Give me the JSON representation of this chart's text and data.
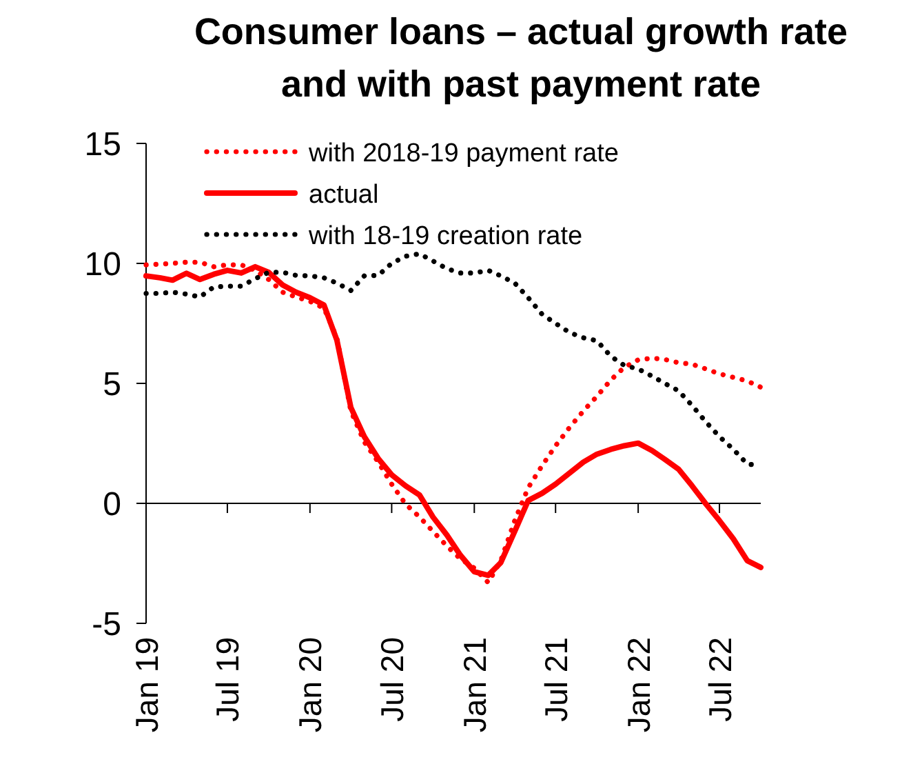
{
  "chart_data": {
    "type": "line",
    "title": "Consumer loans – actual growth rate\nand with past payment rate",
    "x": [
      "2019-01",
      "2019-02",
      "2019-03",
      "2019-04",
      "2019-05",
      "2019-06",
      "2019-07",
      "2019-08",
      "2019-09",
      "2019-10",
      "2019-11",
      "2019-12",
      "2020-01",
      "2020-02",
      "2020-03",
      "2020-04",
      "2020-05",
      "2020-06",
      "2020-07",
      "2020-08",
      "2020-09",
      "2020-10",
      "2020-11",
      "2020-12",
      "2021-01",
      "2021-02",
      "2021-03",
      "2021-04",
      "2021-05",
      "2021-06",
      "2021-07",
      "2021-08",
      "2021-09",
      "2021-10",
      "2021-11",
      "2021-12",
      "2022-01",
      "2022-02",
      "2022-03",
      "2022-04",
      "2022-05",
      "2022-06",
      "2022-07",
      "2022-08",
      "2022-09",
      "2022-10"
    ],
    "series": [
      {
        "name": "with 2018-19 payment rate",
        "color": "#ff0000",
        "line_style": "dotted",
        "values": [
          9.94,
          9.97,
          10.0,
          10.05,
          10.05,
          9.86,
          9.94,
          9.94,
          9.71,
          9.33,
          8.8,
          8.6,
          8.42,
          8.14,
          6.9,
          3.85,
          2.56,
          1.72,
          0.8,
          -0.03,
          -0.57,
          -1.17,
          -1.78,
          -2.31,
          -2.7,
          -3.3,
          -2.39,
          -0.72,
          0.65,
          1.57,
          2.4,
          3.16,
          3.85,
          4.46,
          5.14,
          5.67,
          5.98,
          6.05,
          6.0,
          5.86,
          5.8,
          5.6,
          5.4,
          5.25,
          5.1,
          4.84
        ]
      },
      {
        "name": "actual",
        "color": "#ff0000",
        "line_style": "solid",
        "values": [
          9.48,
          9.4,
          9.3,
          9.59,
          9.33,
          9.55,
          9.71,
          9.6,
          9.86,
          9.63,
          9.1,
          8.8,
          8.57,
          8.27,
          6.8,
          4.0,
          2.78,
          1.87,
          1.19,
          0.73,
          0.35,
          -0.57,
          -1.32,
          -2.16,
          -2.85,
          -3.0,
          -2.47,
          -1.17,
          0.12,
          0.42,
          0.8,
          1.26,
          1.72,
          2.05,
          2.25,
          2.4,
          2.51,
          2.2,
          1.84,
          1.42,
          0.73,
          -0.03,
          -0.72,
          -1.48,
          -2.39,
          -2.67
        ]
      },
      {
        "name": "with 18-19 creation rate",
        "color": "#000000",
        "line_style": "dotted",
        "values": [
          8.75,
          8.75,
          8.8,
          8.72,
          8.6,
          9.02,
          9.05,
          9.05,
          9.36,
          9.63,
          9.63,
          9.5,
          9.48,
          9.4,
          9.18,
          8.87,
          9.48,
          9.5,
          10.0,
          10.3,
          10.4,
          10.1,
          9.78,
          9.6,
          9.6,
          9.71,
          9.48,
          9.18,
          8.57,
          7.88,
          7.5,
          7.12,
          6.9,
          6.78,
          6.13,
          5.75,
          5.6,
          5.3,
          5.0,
          4.69,
          4.08,
          3.39,
          2.78,
          2.25,
          1.64,
          1.57
        ]
      }
    ],
    "xlim": [
      "2019-01",
      "2022-10"
    ],
    "xticks": [
      {
        "value": "2019-01",
        "label": "Jan 19"
      },
      {
        "value": "2019-07",
        "label": "Jul 19"
      },
      {
        "value": "2020-01",
        "label": "Jan 20"
      },
      {
        "value": "2020-07",
        "label": "Jul 20"
      },
      {
        "value": "2021-01",
        "label": "Jan 21"
      },
      {
        "value": "2021-07",
        "label": "Jul 21"
      },
      {
        "value": "2022-01",
        "label": "Jan 22"
      },
      {
        "value": "2022-07",
        "label": "Jul 22"
      }
    ],
    "ylim": [
      -5,
      15
    ],
    "yticks": [
      -5,
      0,
      5,
      10,
      15
    ],
    "legend": "top left"
  }
}
